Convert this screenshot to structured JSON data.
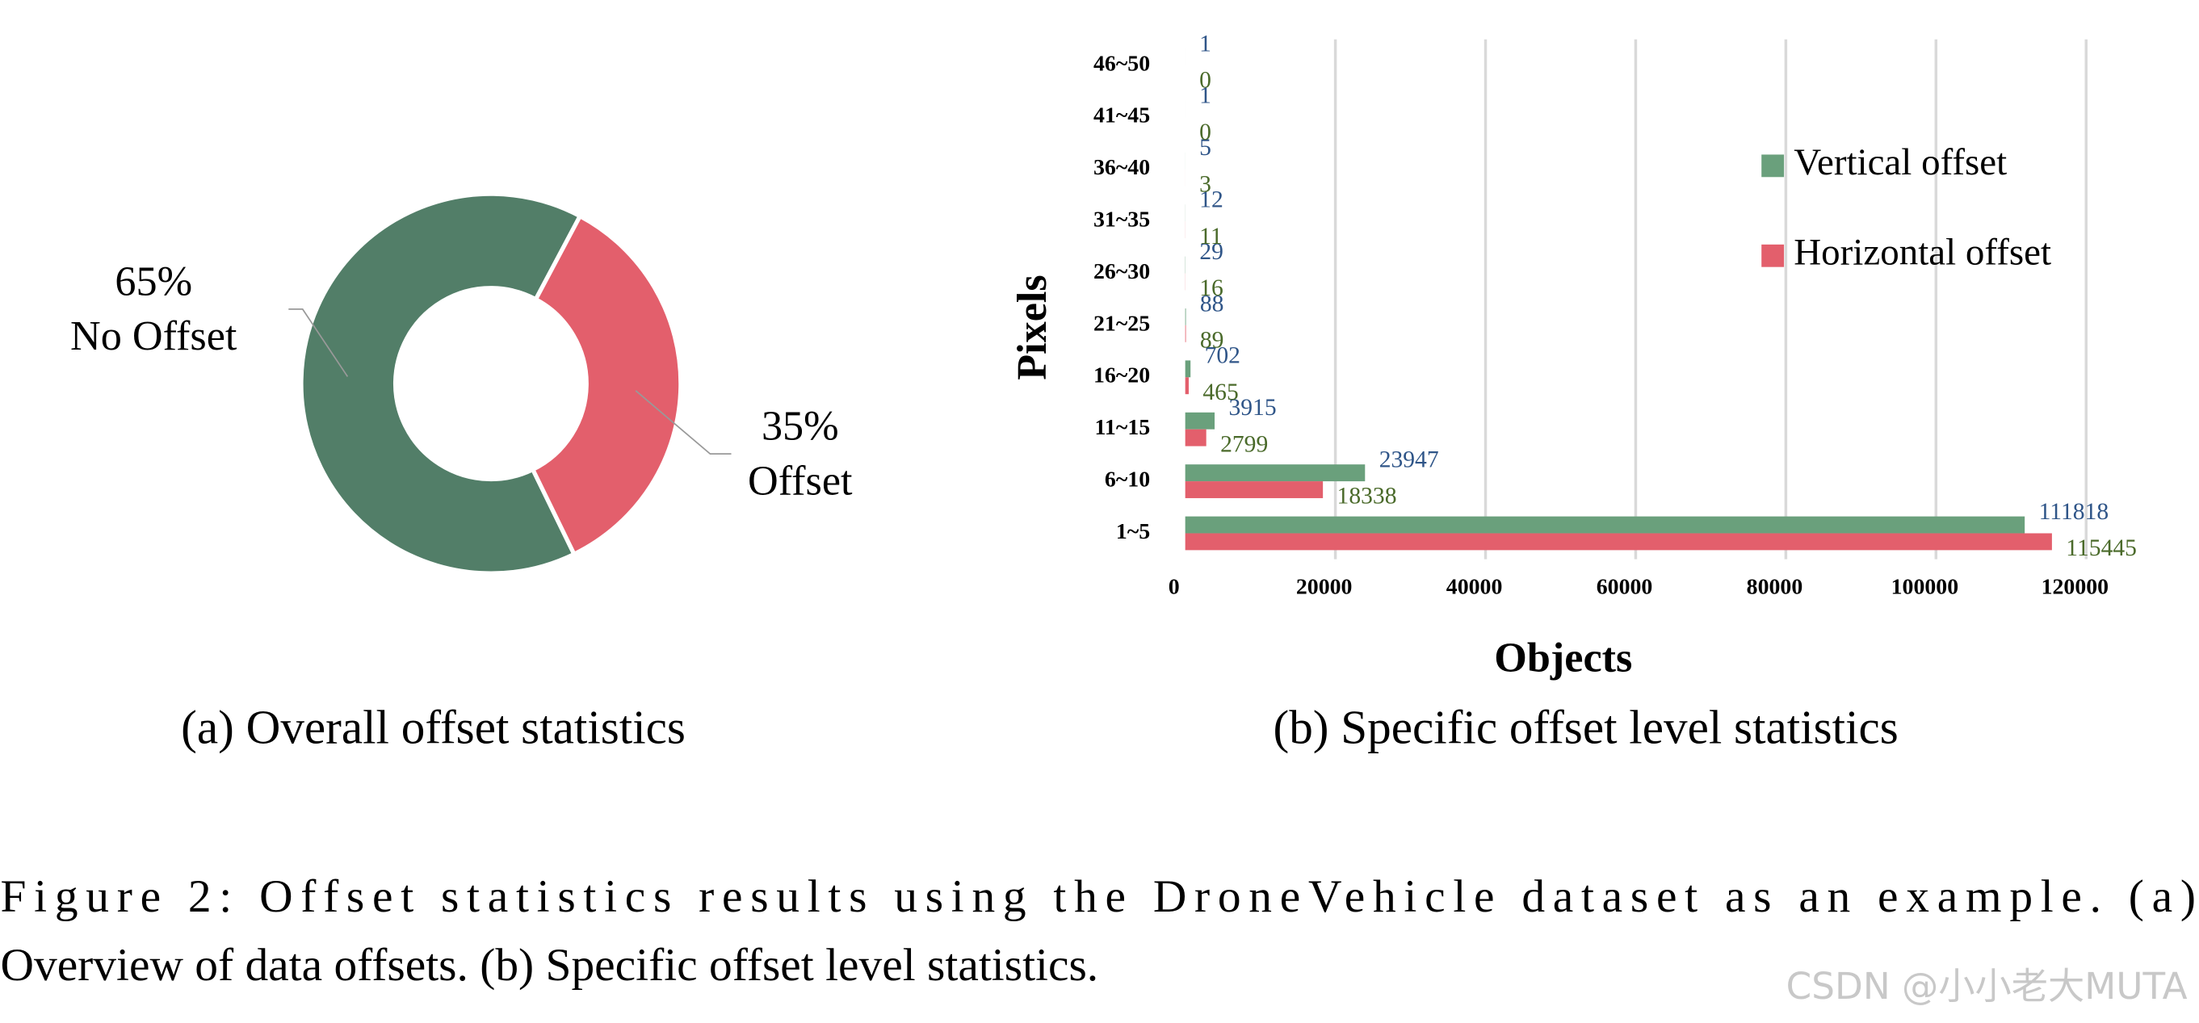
{
  "chart_data": [
    {
      "type": "pie",
      "caption": "(a) Overall offset statistics",
      "categories": [
        "No Offset",
        "Offset"
      ],
      "values": [
        65,
        35
      ],
      "value_labels": [
        "65%",
        "35%"
      ],
      "colors": [
        "#527e68",
        "#e35f6c"
      ],
      "hole": true
    },
    {
      "type": "hbar",
      "caption": "(b) Specific offset level statistics",
      "x_label": "Objects",
      "y_label": "Pixels",
      "categories": [
        "1~5",
        "6~10",
        "11~15",
        "16~20",
        "21~25",
        "26~30",
        "31~35",
        "36~40",
        "41~45",
        "46~50"
      ],
      "series": [
        {
          "name": "Vertical offset",
          "color": "#6aa07c",
          "label_color": "#2f5588",
          "values": [
            111818,
            23947,
            3915,
            702,
            88,
            29,
            12,
            5,
            1,
            1
          ]
        },
        {
          "name": "Horizontal offset",
          "color": "#e35f6c",
          "label_color": "#4a6a2a",
          "values": [
            115445,
            18338,
            2799,
            465,
            89,
            16,
            11,
            3,
            0,
            0
          ]
        }
      ],
      "xlim": [
        0,
        120000
      ],
      "xticks": [
        0,
        20000,
        40000,
        60000,
        80000,
        100000,
        120000
      ],
      "grid": true,
      "legend": "upper right"
    }
  ],
  "figure_caption": [
    "Figure 2:  Offset statistics results using the DroneVehicle dataset as an example.  (a)",
    "Overview of data offsets. (b) Specific offset level statistics."
  ],
  "watermark": "CSDN @小小老大MUTA"
}
